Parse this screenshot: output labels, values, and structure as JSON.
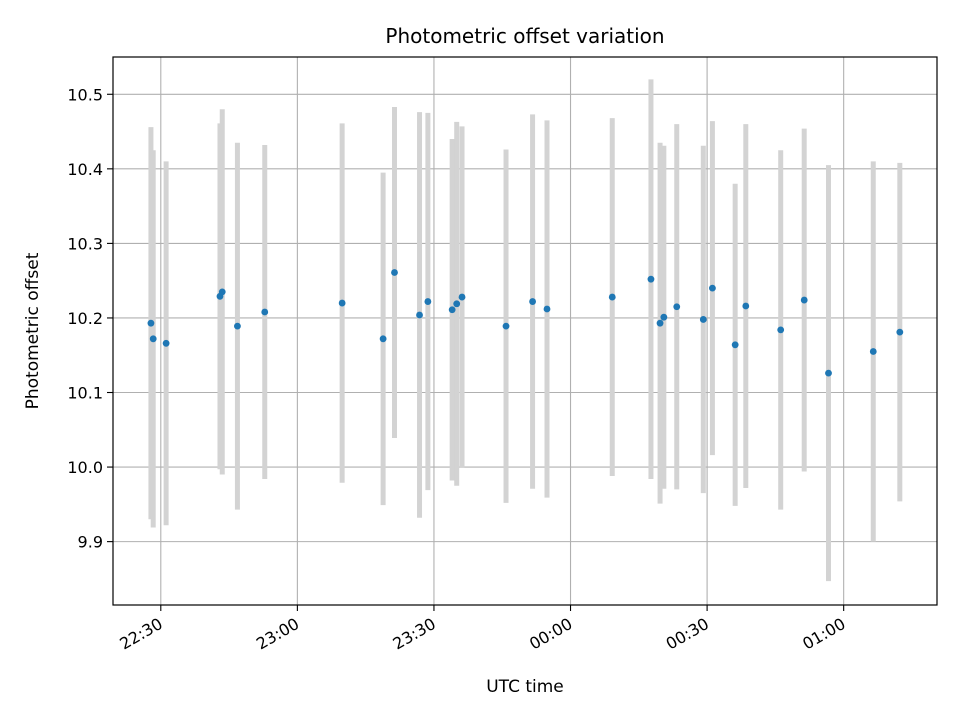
{
  "chart_data": {
    "type": "scatter",
    "title": "Photometric offset variation",
    "xlabel": "UTC time",
    "ylabel": "Photometric offset",
    "grid": true,
    "x_unit": "UTC time (HH:MM)",
    "xlim": [
      "22:19:30",
      "01:20:30"
    ],
    "ylim": [
      9.815,
      10.55
    ],
    "x_ticks": [
      "22:30",
      "23:00",
      "23:30",
      "00:00",
      "00:30",
      "01:00"
    ],
    "y_ticks": [
      9.9,
      10.0,
      10.1,
      10.2,
      10.3,
      10.4,
      10.5
    ],
    "colors": {
      "marker": "#1f77b4",
      "errorbar": "#d3d3d3",
      "grid": "#b0b0b0"
    },
    "series": [
      {
        "points": [
          {
            "t": "22:27:50",
            "y": 10.193,
            "err": 0.263
          },
          {
            "t": "22:28:20",
            "y": 10.172,
            "err": 0.253
          },
          {
            "t": "22:31:10",
            "y": 10.166,
            "err": 0.244
          },
          {
            "t": "22:43:00",
            "y": 10.229,
            "err": 0.232
          },
          {
            "t": "22:43:30",
            "y": 10.235,
            "err": 0.245
          },
          {
            "t": "22:46:50",
            "y": 10.189,
            "err": 0.246
          },
          {
            "t": "22:52:50",
            "y": 10.208,
            "err": 0.224
          },
          {
            "t": "23:09:50",
            "y": 10.22,
            "err": 0.241
          },
          {
            "t": "23:18:50",
            "y": 10.172,
            "err": 0.223
          },
          {
            "t": "23:21:20",
            "y": 10.261,
            "err": 0.222
          },
          {
            "t": "23:26:50",
            "y": 10.204,
            "err": 0.272
          },
          {
            "t": "23:28:40",
            "y": 10.222,
            "err": 0.253
          },
          {
            "t": "23:34:00",
            "y": 10.211,
            "err": 0.229
          },
          {
            "t": "23:35:00",
            "y": 10.219,
            "err": 0.244
          },
          {
            "t": "23:36:10",
            "y": 10.228,
            "err": 0.229
          },
          {
            "t": "23:45:50",
            "y": 10.189,
            "err": 0.237
          },
          {
            "t": "23:51:40",
            "y": 10.222,
            "err": 0.251
          },
          {
            "t": "23:54:50",
            "y": 10.212,
            "err": 0.253
          },
          {
            "t": "00:09:10",
            "y": 10.228,
            "err": 0.24
          },
          {
            "t": "00:17:40",
            "y": 10.252,
            "err": 0.268
          },
          {
            "t": "00:19:40",
            "y": 10.193,
            "err": 0.242
          },
          {
            "t": "00:20:30",
            "y": 10.201,
            "err": 0.23
          },
          {
            "t": "00:23:20",
            "y": 10.215,
            "err": 0.245
          },
          {
            "t": "00:29:10",
            "y": 10.198,
            "err": 0.233
          },
          {
            "t": "00:31:10",
            "y": 10.24,
            "err": 0.224
          },
          {
            "t": "00:36:10",
            "y": 10.164,
            "err": 0.216
          },
          {
            "t": "00:38:30",
            "y": 10.216,
            "err": 0.244
          },
          {
            "t": "00:46:10",
            "y": 10.184,
            "err": 0.241
          },
          {
            "t": "00:51:20",
            "y": 10.224,
            "err": 0.23
          },
          {
            "t": "00:56:40",
            "y": 10.126,
            "err": 0.279
          },
          {
            "t": "01:06:30",
            "y": 10.155,
            "err": 0.255
          },
          {
            "t": "01:12:20",
            "y": 10.181,
            "err": 0.227
          }
        ]
      }
    ]
  }
}
